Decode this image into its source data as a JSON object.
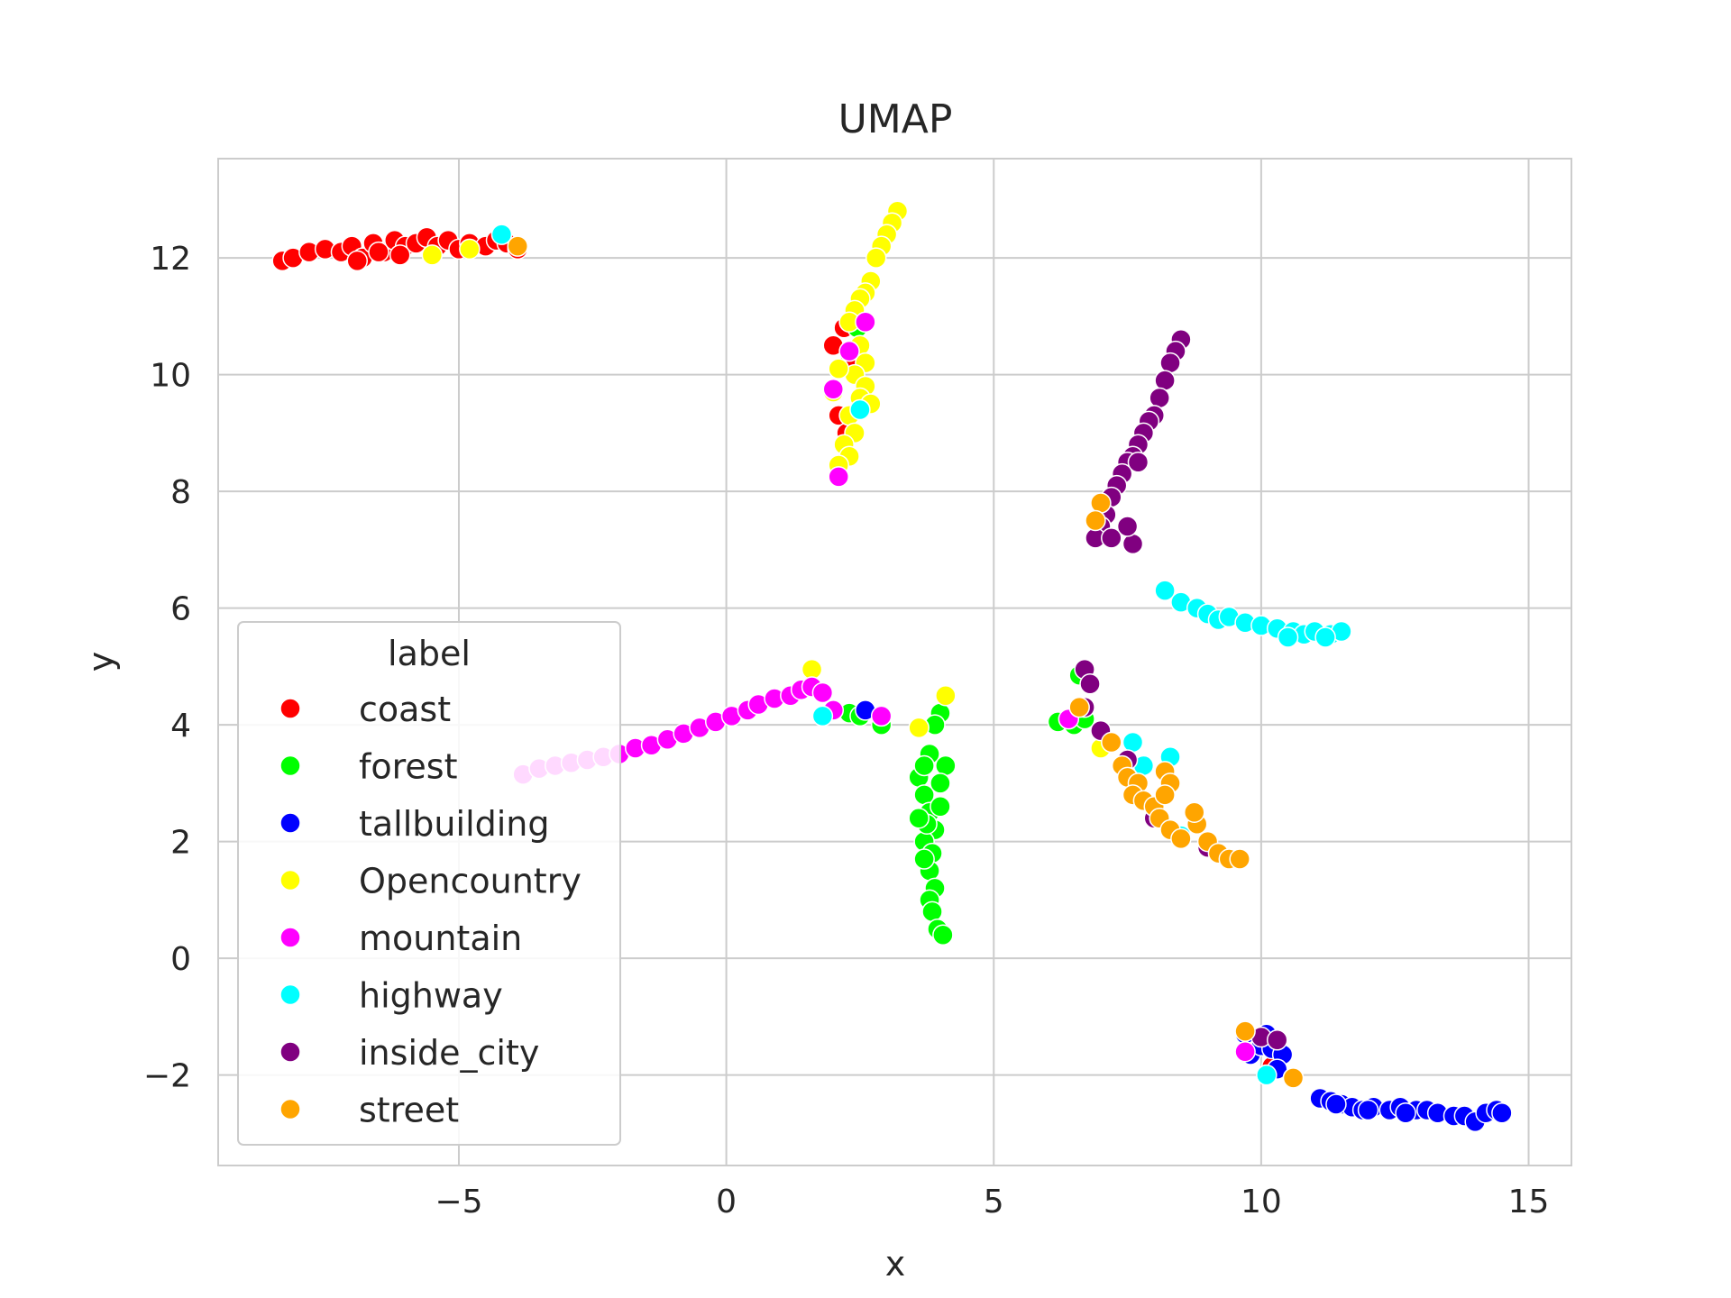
{
  "chart_data": {
    "type": "scatter",
    "title": "UMAP",
    "xlabel": "x",
    "ylabel": "y",
    "xlim": [
      -9.5,
      15.8
    ],
    "ylim": [
      -3.55,
      13.7
    ],
    "xticks": [
      -5,
      0,
      5,
      10,
      15
    ],
    "yticks": [
      -2,
      0,
      2,
      4,
      6,
      8,
      10,
      12
    ],
    "grid": true,
    "legend": {
      "title": "label",
      "placement": "middle-left"
    },
    "series": [
      {
        "name": "coast",
        "color": "#ff0000",
        "points": [
          [
            -8.3,
            11.95
          ],
          [
            -8.1,
            12.0
          ],
          [
            -7.8,
            12.1
          ],
          [
            -7.5,
            12.15
          ],
          [
            -7.2,
            12.1
          ],
          [
            -7.0,
            12.2
          ],
          [
            -6.8,
            12.0
          ],
          [
            -6.6,
            12.25
          ],
          [
            -6.4,
            12.1
          ],
          [
            -6.2,
            12.3
          ],
          [
            -6.0,
            12.2
          ],
          [
            -5.8,
            12.25
          ],
          [
            -5.6,
            12.35
          ],
          [
            -5.4,
            12.2
          ],
          [
            -5.2,
            12.3
          ],
          [
            -5.0,
            12.15
          ],
          [
            -4.8,
            12.25
          ],
          [
            -4.5,
            12.2
          ],
          [
            -4.3,
            12.3
          ],
          [
            -4.1,
            12.25
          ],
          [
            -3.9,
            12.15
          ],
          [
            -6.9,
            11.95
          ],
          [
            -6.5,
            12.1
          ],
          [
            -6.1,
            12.05
          ],
          [
            2.0,
            10.5
          ],
          [
            2.2,
            10.8
          ],
          [
            2.1,
            9.3
          ],
          [
            2.25,
            9.0
          ],
          [
            2.3,
            10.2
          ],
          [
            10.2,
            -1.85
          ]
        ]
      },
      {
        "name": "forest",
        "color": "#00ff00",
        "points": [
          [
            2.3,
            4.2
          ],
          [
            2.5,
            4.15
          ],
          [
            2.9,
            4.0
          ],
          [
            3.6,
            3.1
          ],
          [
            3.8,
            3.5
          ],
          [
            4.0,
            4.2
          ],
          [
            3.9,
            4.0
          ],
          [
            4.1,
            3.3
          ],
          [
            3.7,
            2.8
          ],
          [
            3.8,
            2.5
          ],
          [
            3.9,
            2.2
          ],
          [
            3.7,
            2.0
          ],
          [
            3.85,
            1.8
          ],
          [
            3.8,
            1.5
          ],
          [
            3.9,
            1.2
          ],
          [
            3.8,
            1.0
          ],
          [
            3.85,
            0.8
          ],
          [
            3.95,
            0.5
          ],
          [
            4.05,
            0.4
          ],
          [
            3.75,
            2.3
          ],
          [
            4.0,
            2.6
          ],
          [
            3.6,
            2.4
          ],
          [
            3.7,
            1.7
          ],
          [
            6.2,
            4.05
          ],
          [
            6.5,
            4.0
          ],
          [
            6.6,
            4.85
          ],
          [
            2.45,
            10.8
          ],
          [
            6.7,
            4.1
          ],
          [
            3.7,
            3.3
          ],
          [
            4.0,
            3.0
          ]
        ]
      },
      {
        "name": "tallbuilding",
        "color": "#0000ff",
        "points": [
          [
            9.7,
            -1.3
          ],
          [
            9.8,
            -1.65
          ],
          [
            10.0,
            -1.5
          ],
          [
            10.1,
            -1.3
          ],
          [
            10.2,
            -1.55
          ],
          [
            10.4,
            -1.65
          ],
          [
            10.3,
            -1.9
          ],
          [
            11.1,
            -2.4
          ],
          [
            11.3,
            -2.45
          ],
          [
            11.5,
            -2.5
          ],
          [
            11.7,
            -2.55
          ],
          [
            11.9,
            -2.6
          ],
          [
            12.1,
            -2.55
          ],
          [
            12.4,
            -2.6
          ],
          [
            12.6,
            -2.55
          ],
          [
            12.9,
            -2.6
          ],
          [
            13.1,
            -2.6
          ],
          [
            13.3,
            -2.65
          ],
          [
            13.6,
            -2.7
          ],
          [
            13.8,
            -2.7
          ],
          [
            14.0,
            -2.8
          ],
          [
            14.2,
            -2.65
          ],
          [
            14.4,
            -2.6
          ],
          [
            14.5,
            -2.65
          ],
          [
            12.0,
            -2.6
          ],
          [
            12.7,
            -2.65
          ],
          [
            2.6,
            4.25
          ],
          [
            11.4,
            -2.5
          ]
        ]
      },
      {
        "name": "Opencountry",
        "color": "#ffff00",
        "points": [
          [
            3.2,
            12.8
          ],
          [
            3.1,
            12.6
          ],
          [
            3.0,
            12.4
          ],
          [
            2.9,
            12.2
          ],
          [
            2.8,
            12.0
          ],
          [
            2.7,
            11.6
          ],
          [
            2.6,
            11.4
          ],
          [
            2.5,
            11.3
          ],
          [
            2.4,
            11.1
          ],
          [
            2.3,
            10.9
          ],
          [
            2.5,
            10.5
          ],
          [
            2.6,
            10.2
          ],
          [
            2.4,
            10.0
          ],
          [
            2.1,
            10.1
          ],
          [
            2.6,
            9.8
          ],
          [
            2.5,
            9.6
          ],
          [
            2.3,
            9.3
          ],
          [
            2.4,
            9.0
          ],
          [
            2.2,
            8.8
          ],
          [
            2.3,
            8.6
          ],
          [
            2.1,
            8.45
          ],
          [
            2.7,
            9.5
          ],
          [
            2.0,
            9.7
          ],
          [
            -5.5,
            12.05
          ],
          [
            -4.8,
            12.15
          ],
          [
            1.6,
            4.95
          ],
          [
            3.6,
            3.95
          ],
          [
            4.1,
            4.5
          ],
          [
            7.0,
            3.6
          ],
          [
            8.8,
            6.0
          ]
        ]
      },
      {
        "name": "mountain",
        "color": "#ff00ff",
        "points": [
          [
            -3.8,
            3.15
          ],
          [
            -3.5,
            3.25
          ],
          [
            -3.2,
            3.3
          ],
          [
            -2.9,
            3.35
          ],
          [
            -2.6,
            3.4
          ],
          [
            -2.3,
            3.45
          ],
          [
            -2.0,
            3.5
          ],
          [
            -1.7,
            3.6
          ],
          [
            -1.4,
            3.65
          ],
          [
            -1.1,
            3.75
          ],
          [
            -0.8,
            3.85
          ],
          [
            -0.5,
            3.95
          ],
          [
            -0.2,
            4.05
          ],
          [
            0.1,
            4.15
          ],
          [
            0.4,
            4.25
          ],
          [
            0.6,
            4.35
          ],
          [
            0.9,
            4.45
          ],
          [
            1.2,
            4.5
          ],
          [
            1.4,
            4.6
          ],
          [
            1.6,
            4.65
          ],
          [
            1.8,
            4.55
          ],
          [
            2.0,
            4.25
          ],
          [
            2.9,
            4.15
          ],
          [
            2.1,
            8.25
          ],
          [
            2.0,
            9.75
          ],
          [
            2.3,
            10.4
          ],
          [
            2.6,
            10.9
          ],
          [
            6.4,
            4.1
          ],
          [
            9.7,
            -1.6
          ]
        ]
      },
      {
        "name": "highway",
        "color": "#00ffff",
        "points": [
          [
            8.2,
            6.3
          ],
          [
            8.5,
            6.1
          ],
          [
            8.8,
            6.0
          ],
          [
            9.0,
            5.9
          ],
          [
            9.2,
            5.8
          ],
          [
            9.4,
            5.85
          ],
          [
            9.7,
            5.75
          ],
          [
            10.0,
            5.7
          ],
          [
            10.3,
            5.65
          ],
          [
            10.6,
            5.6
          ],
          [
            10.8,
            5.55
          ],
          [
            11.0,
            5.6
          ],
          [
            11.3,
            5.55
          ],
          [
            11.5,
            5.6
          ],
          [
            10.5,
            5.5
          ],
          [
            11.2,
            5.5
          ],
          [
            1.8,
            4.15
          ],
          [
            7.6,
            3.7
          ],
          [
            7.8,
            3.3
          ],
          [
            8.3,
            3.45
          ],
          [
            8.5,
            2.1
          ],
          [
            10.6,
            -2.05
          ],
          [
            10.1,
            -2.0
          ],
          [
            -4.2,
            12.4
          ],
          [
            2.5,
            9.4
          ]
        ]
      },
      {
        "name": "inside_city",
        "color": "#800080",
        "points": [
          [
            8.5,
            10.6
          ],
          [
            8.4,
            10.4
          ],
          [
            8.3,
            10.2
          ],
          [
            8.2,
            9.9
          ],
          [
            8.1,
            9.6
          ],
          [
            8.0,
            9.3
          ],
          [
            7.9,
            9.2
          ],
          [
            7.8,
            9.0
          ],
          [
            7.7,
            8.8
          ],
          [
            7.6,
            8.6
          ],
          [
            7.5,
            8.5
          ],
          [
            7.4,
            8.3
          ],
          [
            7.3,
            8.1
          ],
          [
            7.2,
            7.9
          ],
          [
            7.1,
            7.6
          ],
          [
            7.0,
            7.4
          ],
          [
            6.9,
            7.2
          ],
          [
            7.2,
            7.2
          ],
          [
            7.6,
            7.1
          ],
          [
            7.5,
            7.4
          ],
          [
            7.7,
            8.5
          ],
          [
            6.7,
            4.95
          ],
          [
            6.8,
            4.7
          ],
          [
            6.7,
            4.3
          ],
          [
            7.0,
            3.9
          ],
          [
            7.5,
            3.4
          ],
          [
            8.0,
            2.4
          ],
          [
            9.0,
            1.9
          ],
          [
            10.0,
            -1.35
          ],
          [
            10.3,
            -1.4
          ]
        ]
      },
      {
        "name": "street",
        "color": "#ffa500",
        "points": [
          [
            7.0,
            7.8
          ],
          [
            6.9,
            7.5
          ],
          [
            6.6,
            4.3
          ],
          [
            7.2,
            3.7
          ],
          [
            7.4,
            3.3
          ],
          [
            7.5,
            3.1
          ],
          [
            7.7,
            3.0
          ],
          [
            7.6,
            2.8
          ],
          [
            7.8,
            2.7
          ],
          [
            8.0,
            2.6
          ],
          [
            8.2,
            3.2
          ],
          [
            8.3,
            3.0
          ],
          [
            8.2,
            2.8
          ],
          [
            8.1,
            2.4
          ],
          [
            8.3,
            2.2
          ],
          [
            8.5,
            2.05
          ],
          [
            8.8,
            2.3
          ],
          [
            9.0,
            2.0
          ],
          [
            9.2,
            1.8
          ],
          [
            9.4,
            1.7
          ],
          [
            9.6,
            1.7
          ],
          [
            8.75,
            2.5
          ],
          [
            9.7,
            -1.25
          ],
          [
            10.6,
            -2.05
          ],
          [
            -3.9,
            12.2
          ]
        ]
      }
    ]
  }
}
